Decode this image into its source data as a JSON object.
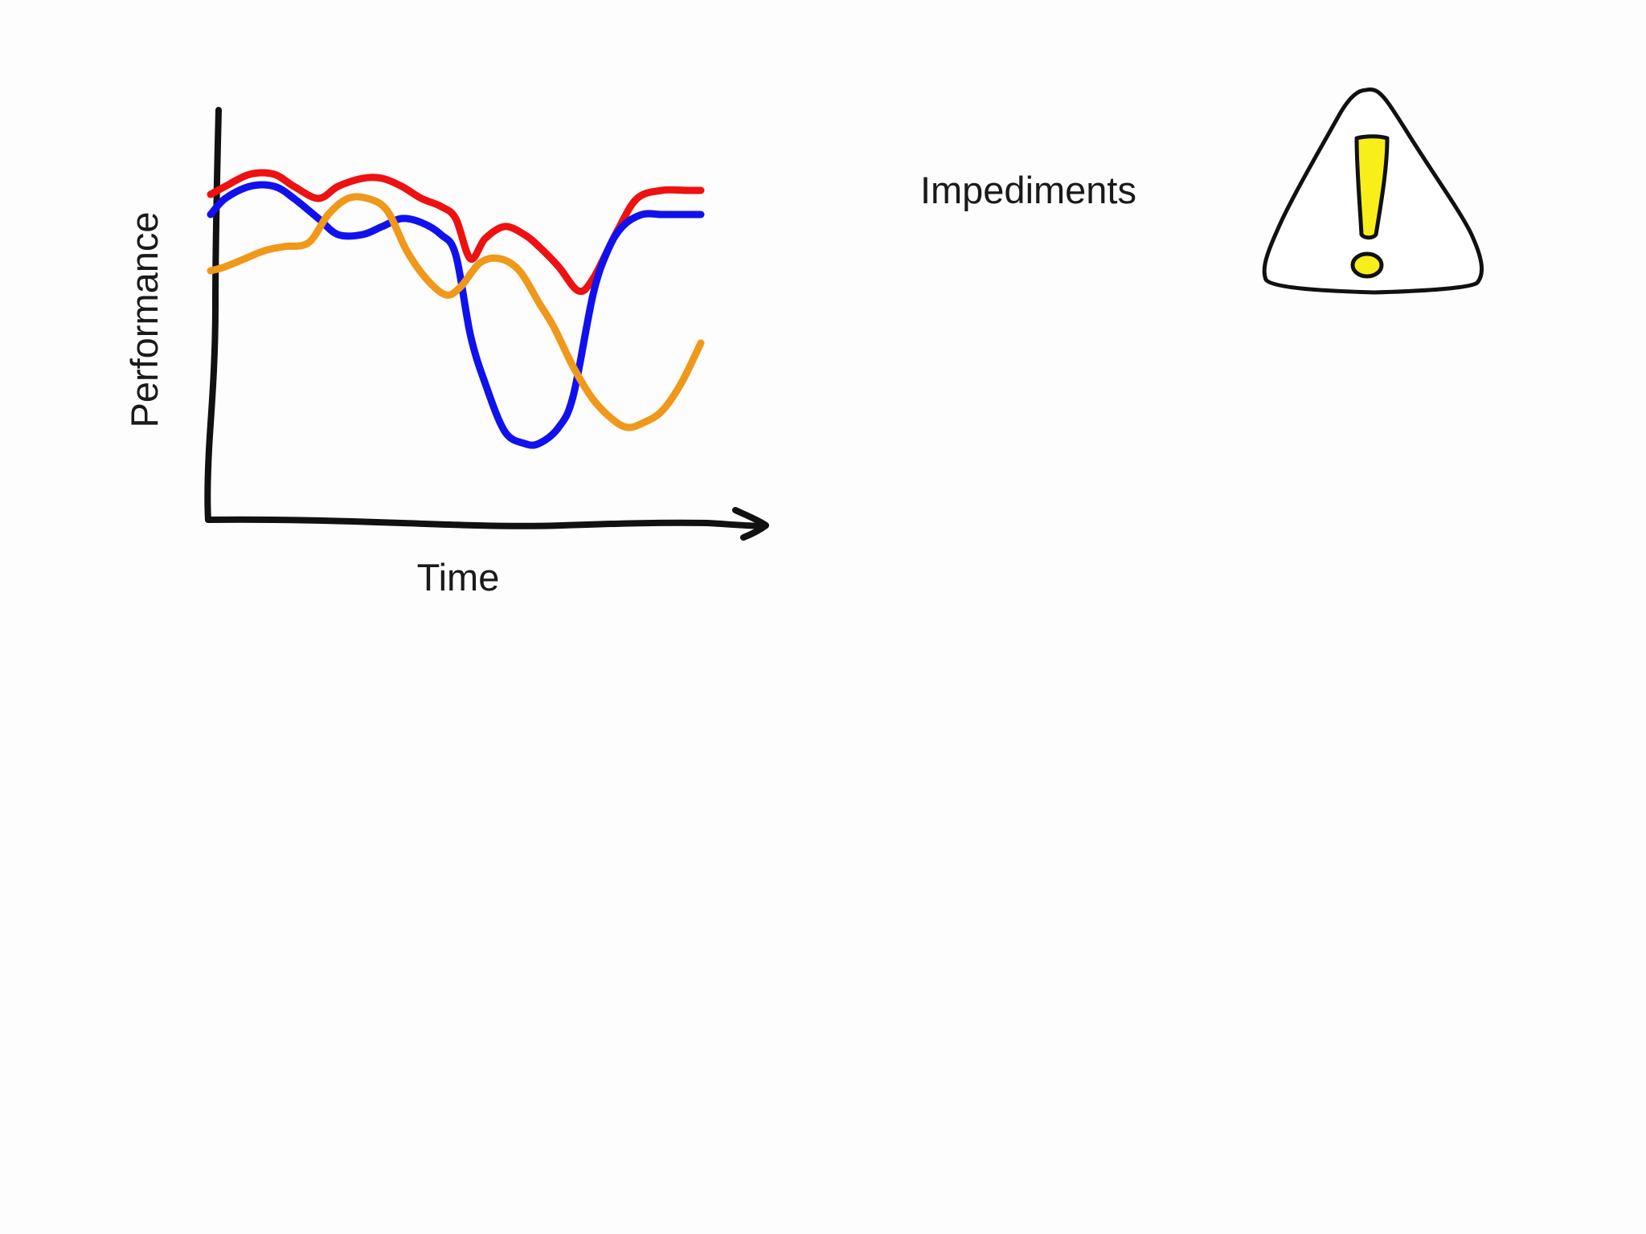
{
  "chart_data": {
    "type": "line",
    "title": "",
    "xlabel": "Time",
    "ylabel": "Performance",
    "xlim": [
      0,
      100
    ],
    "ylim": [
      0,
      100
    ],
    "grid": false,
    "legend": "none",
    "axis_style": "hand-drawn, no ticks, arrow on x-axis",
    "series": [
      {
        "color": "#ee1111",
        "x": [
          0,
          3,
          8,
          13,
          17,
          22,
          26,
          31,
          35,
          39,
          43,
          47,
          50,
          53,
          56,
          60,
          64,
          67,
          71,
          75,
          78,
          83,
          87,
          92,
          97,
          100
        ],
        "values": [
          81,
          83,
          86,
          86,
          83,
          80,
          83,
          85,
          85,
          83,
          80,
          78,
          75,
          65,
          70,
          73,
          71,
          68,
          63,
          57,
          60,
          72,
          80,
          82,
          82,
          82
        ]
      },
      {
        "color": "#1111ee",
        "x": [
          0,
          3,
          8,
          13,
          17,
          22,
          26,
          31,
          35,
          39,
          43,
          47,
          50,
          53,
          56,
          60,
          64,
          67,
          71,
          74,
          78,
          81,
          84,
          88,
          92,
          97,
          100
        ],
        "values": [
          76,
          80,
          83,
          83,
          80,
          75,
          71,
          71,
          73,
          75,
          74,
          71,
          66,
          46,
          34,
          22,
          19,
          19,
          23,
          31,
          56,
          67,
          73,
          76,
          76,
          76,
          76
        ]
      },
      {
        "color": "#f0981a",
        "x": [
          0,
          3,
          7,
          11,
          15,
          20,
          24,
          28,
          32,
          36,
          40,
          44,
          48,
          51,
          55,
          59,
          63,
          67,
          70,
          74,
          78,
          82,
          85,
          88,
          92,
          96,
          100
        ],
        "values": [
          62,
          63,
          65,
          67,
          68,
          69,
          76,
          80,
          80,
          77,
          67,
          60,
          56,
          58,
          64,
          65,
          62,
          54,
          48,
          38,
          30,
          25,
          23,
          24,
          27,
          34,
          44
        ]
      }
    ],
    "annotation": {
      "text": "Impediments",
      "icon": "warning-triangle-icon",
      "icon_colors": {
        "fill": "#ffffff",
        "outline": "#111111",
        "mark": "#f7ee1a"
      }
    }
  }
}
